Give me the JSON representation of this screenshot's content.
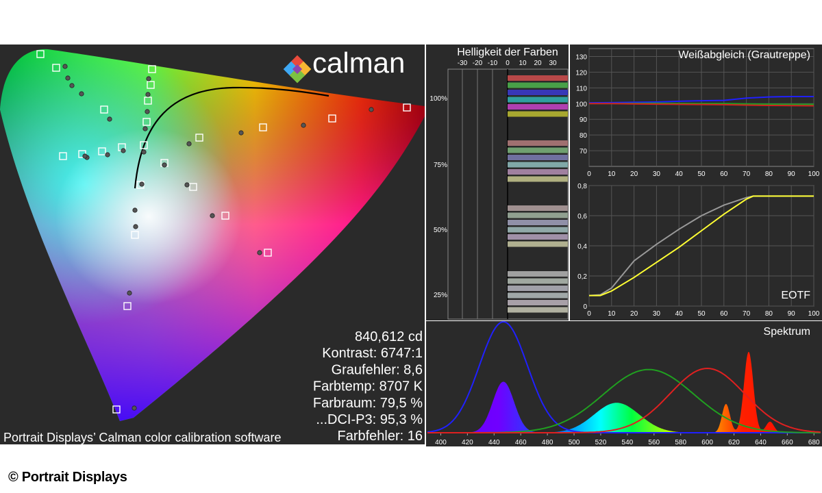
{
  "logo": {
    "text": "calman"
  },
  "caption": "Portrait Displays’ Calman color calibration software",
  "copyright": "© Portrait Displays",
  "colors": {
    "panel_bg": "#2a2a2a",
    "grid": "#555555",
    "text": "#ffffff"
  },
  "stats": [
    {
      "text": "840,612 cd"
    },
    {
      "text": "Kontrast: 6747:1"
    },
    {
      "text": "Graufehler: 8,6"
    },
    {
      "text": "Farbtemp: 8707 K"
    },
    {
      "text": "Farbraum: 79,5 %"
    },
    {
      "text": "...DCI-P3: 95,3 %"
    },
    {
      "text": "Farbfehler: 16"
    }
  ],
  "chart_data": [
    {
      "type": "scatter",
      "title": "",
      "description_of_points": "CIE chromaticity diagram: target squares and measured dots",
      "targets": [
        [
          59,
          79
        ],
        [
          82,
          99
        ],
        [
          222,
          101
        ],
        [
          220,
          124
        ],
        [
          216,
          147
        ],
        [
          214,
          178
        ],
        [
          210,
          212
        ],
        [
          152,
          160
        ],
        [
          120,
          225
        ],
        [
          92,
          228
        ],
        [
          149,
          221
        ],
        [
          178,
          215
        ],
        [
          240,
          238
        ],
        [
          205,
          270
        ],
        [
          282,
          273
        ],
        [
          291,
          201
        ],
        [
          384,
          186
        ],
        [
          485,
          173
        ],
        [
          594,
          157
        ],
        [
          329,
          315
        ],
        [
          391,
          369
        ],
        [
          197,
          343
        ],
        [
          186,
          447
        ],
        [
          170,
          598
        ]
      ],
      "measured": [
        [
          95,
          97
        ],
        [
          99,
          114
        ],
        [
          105,
          125
        ],
        [
          119,
          137
        ],
        [
          217,
          115
        ],
        [
          216,
          138
        ],
        [
          215,
          163
        ],
        [
          212,
          188
        ],
        [
          160,
          174
        ],
        [
          127,
          230
        ],
        [
          124,
          228
        ],
        [
          157,
          226
        ],
        [
          180,
          220
        ],
        [
          210,
          222
        ],
        [
          240,
          241
        ],
        [
          207,
          269
        ],
        [
          273,
          270
        ],
        [
          276,
          210
        ],
        [
          352,
          194
        ],
        [
          443,
          183
        ],
        [
          542,
          160
        ],
        [
          310,
          315
        ],
        [
          379,
          369
        ],
        [
          197,
          307
        ],
        [
          198,
          331
        ],
        [
          189,
          428
        ],
        [
          196,
          596
        ]
      ]
    },
    {
      "type": "bar",
      "title": "Helligkeit der Farben",
      "xticks": [
        "-30",
        "-20",
        "-10",
        "0",
        "10",
        "20",
        "30"
      ],
      "ylabels": [
        "100%",
        "75%",
        "50%",
        "25%"
      ]
    },
    {
      "type": "line",
      "title": "Weißabgleich (Grautreppe)",
      "x": [
        0,
        10,
        20,
        30,
        40,
        50,
        60,
        70,
        80,
        90,
        100
      ],
      "ylim": [
        60,
        135
      ],
      "yticks": [
        "70",
        "80",
        "90",
        "100",
        "110",
        "120",
        "130"
      ],
      "xticks": [
        "0",
        "10",
        "20",
        "30",
        "40",
        "50",
        "60",
        "70",
        "80",
        "90",
        "100"
      ],
      "series": [
        {
          "color": "#2020ff",
          "values": [
            100.5,
            100.6,
            100.8,
            101.0,
            101.5,
            101.8,
            102.0,
            103.5,
            104.2,
            104.5,
            104.5
          ]
        },
        {
          "color": "#20a020",
          "values": [
            100.0,
            100.0,
            100.1,
            100.2,
            100.1,
            100.0,
            100.0,
            99.8,
            99.6,
            99.5,
            99.5
          ]
        },
        {
          "color": "#d02020",
          "values": [
            100.0,
            100.0,
            99.8,
            99.6,
            99.5,
            99.4,
            99.3,
            99.0,
            98.8,
            98.7,
            98.6
          ]
        }
      ]
    },
    {
      "type": "line",
      "title": "EOTF",
      "x": [
        0,
        5,
        10,
        20,
        30,
        40,
        50,
        60,
        70,
        73,
        80,
        90,
        100
      ],
      "ylim": [
        0,
        0.8
      ],
      "yticks": [
        "0",
        "0,2",
        "0,4",
        "0,6",
        "0,8"
      ],
      "xticks": [
        "0",
        "10",
        "20",
        "30",
        "40",
        "50",
        "60",
        "70",
        "80",
        "90",
        "100"
      ],
      "series": [
        {
          "color": "#999999",
          "values": [
            0.07,
            0.075,
            0.12,
            0.3,
            0.41,
            0.51,
            0.6,
            0.67,
            0.72,
            0.73,
            0.73,
            0.73,
            0.73
          ]
        },
        {
          "color": "#ffff33",
          "values": [
            0.07,
            0.07,
            0.1,
            0.19,
            0.29,
            0.39,
            0.5,
            0.61,
            0.71,
            0.73,
            0.73,
            0.73,
            0.73
          ]
        }
      ]
    },
    {
      "type": "area",
      "title": "Spektrum",
      "xlim": [
        390,
        685
      ],
      "xticks": [
        "400",
        "420",
        "440",
        "460",
        "480",
        "500",
        "520",
        "540",
        "560",
        "580",
        "600",
        "620",
        "640",
        "660",
        "680"
      ],
      "reference_peaks": [
        {
          "color": "#2020ff",
          "center": 447,
          "width": 18,
          "height": 1.0
        },
        {
          "color": "#20a020",
          "center": 556,
          "width": 34,
          "height": 0.57
        },
        {
          "color": "#e02020",
          "center": 600,
          "width": 28,
          "height": 0.58
        }
      ],
      "measured_peaks": [
        {
          "center": 447,
          "width": 8,
          "height": 0.46
        },
        {
          "center": 532,
          "width": 17,
          "height": 0.27
        },
        {
          "center": 614,
          "width": 3,
          "height": 0.26
        },
        {
          "center": 631,
          "width": 3.5,
          "height": 0.73
        },
        {
          "center": 647,
          "width": 3,
          "height": 0.1
        }
      ]
    }
  ]
}
